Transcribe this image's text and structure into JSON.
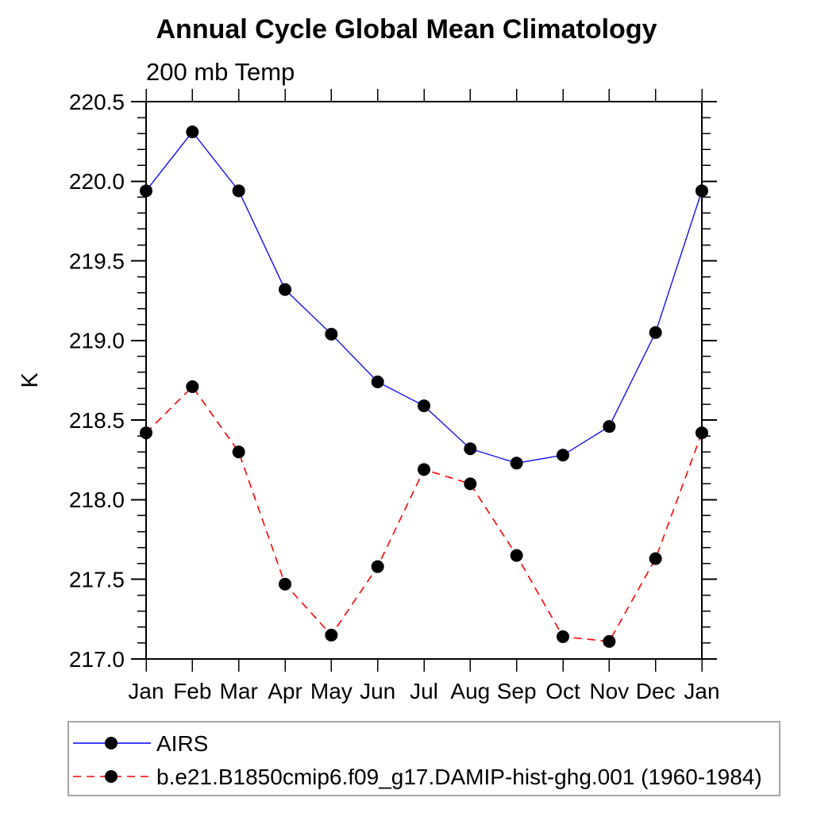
{
  "chart_data": {
    "type": "line",
    "title": "Annual Cycle Global Mean Climatology",
    "subtitle": "200 mb Temp",
    "ylabel": "K",
    "xlabel": "",
    "categories": [
      "Jan",
      "Feb",
      "Mar",
      "Apr",
      "May",
      "Jun",
      "Jul",
      "Aug",
      "Sep",
      "Oct",
      "Nov",
      "Dec",
      "Jan"
    ],
    "ylim": [
      217.0,
      220.5
    ],
    "y_major_step": 0.5,
    "y_minor_step": 0.1,
    "grid": false,
    "legend_position": "bottom-left",
    "series": [
      {
        "name": "AIRS",
        "color": "#0000ff",
        "line_style": "solid",
        "marker": "circle",
        "marker_color": "#000000",
        "values": [
          219.94,
          220.31,
          219.94,
          219.32,
          219.04,
          218.74,
          218.59,
          218.32,
          218.23,
          218.28,
          218.46,
          219.05,
          219.94
        ]
      },
      {
        "name": "b.e21.B1850cmip6.f09_g17.DAMIP-hist-ghg.001 (1960-1984)",
        "color": "#ff0000",
        "line_style": "dashed",
        "marker": "circle",
        "marker_color": "#000000",
        "values": [
          218.42,
          218.71,
          218.3,
          217.47,
          217.15,
          217.58,
          218.19,
          218.1,
          217.65,
          217.14,
          217.11,
          217.63,
          218.42
        ]
      }
    ]
  }
}
